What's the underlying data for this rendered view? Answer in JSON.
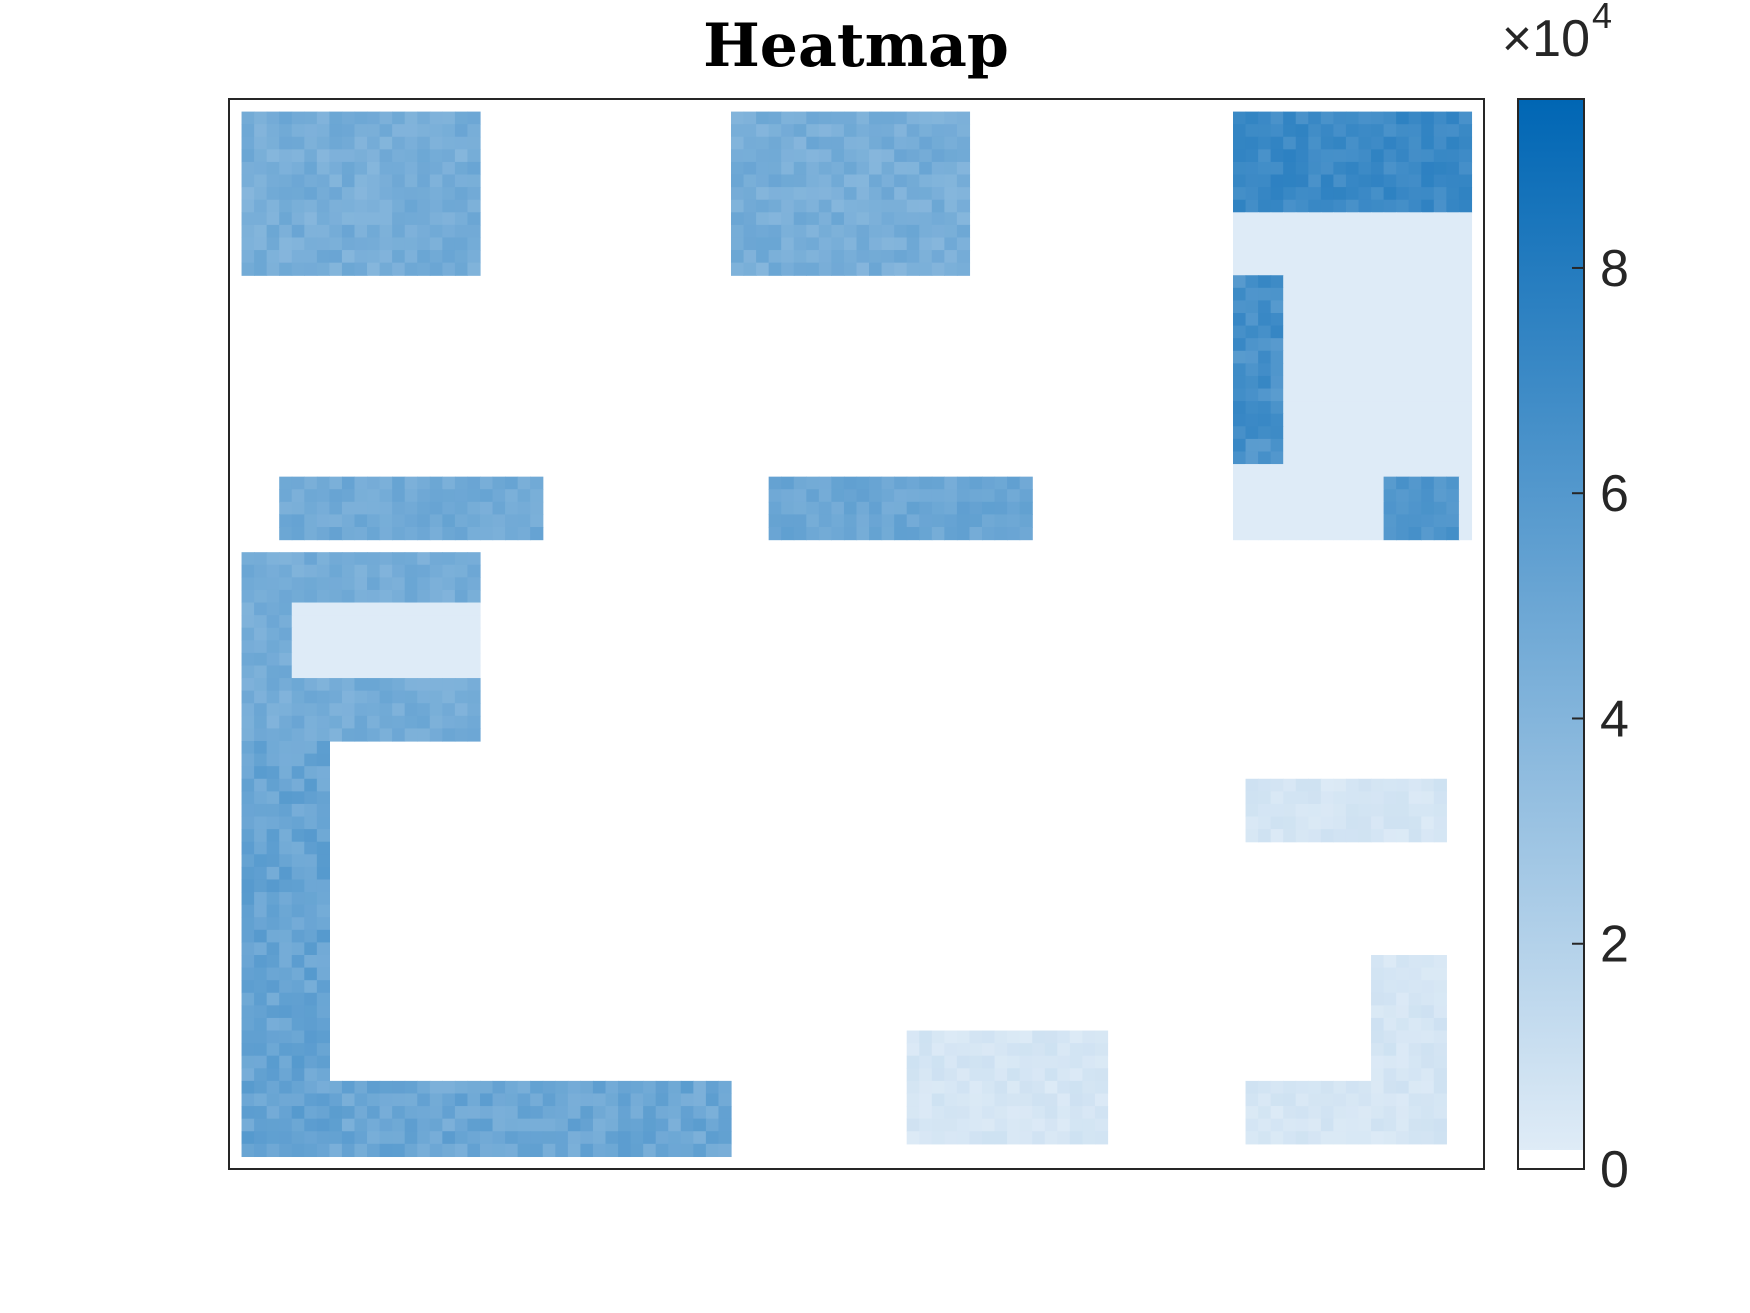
{
  "chart_data": {
    "type": "heatmap",
    "title": "Heatmap",
    "xlabel": "",
    "ylabel": "",
    "grid": false,
    "colorbar": {
      "min": 0,
      "max": 95000,
      "ticks": [
        0,
        20000,
        40000,
        60000,
        80000
      ],
      "tick_labels": [
        "0",
        "2",
        "4",
        "6",
        "8"
      ],
      "exponent_label": "×10",
      "exponent": "4",
      "color_low": "#e3eef8",
      "color_high": "#0066b4",
      "zero_color": "#ffffff"
    },
    "grid_size": {
      "cols": 100,
      "rows": 85
    },
    "regions": [
      {
        "c0": 1,
        "r0": 1,
        "c1": 20,
        "r1": 14,
        "value": 45000,
        "noise": 6000
      },
      {
        "c0": 40,
        "r0": 1,
        "c1": 59,
        "r1": 14,
        "value": 45000,
        "noise": 6000
      },
      {
        "c0": 80,
        "r0": 1,
        "c1": 99,
        "r1": 9,
        "value": 70000,
        "noise": 6000
      },
      {
        "c0": 80,
        "r0": 9,
        "c1": 99,
        "r1": 35,
        "value": 2000,
        "noise": 0
      },
      {
        "c0": 80,
        "r0": 14,
        "c1": 84,
        "r1": 29,
        "value": 65000,
        "noise": 8000
      },
      {
        "c0": 92,
        "r0": 30,
        "c1": 98,
        "r1": 35,
        "value": 62000,
        "noise": 5000
      },
      {
        "c0": 4,
        "r0": 30,
        "c1": 25,
        "r1": 35,
        "value": 48000,
        "noise": 5000
      },
      {
        "c0": 43,
        "r0": 30,
        "c1": 64,
        "r1": 35,
        "value": 50000,
        "noise": 5000
      },
      {
        "c0": 1,
        "r0": 36,
        "c1": 20,
        "r1": 51,
        "value": 46000,
        "noise": 5000
      },
      {
        "c0": 5,
        "r0": 40,
        "c1": 20,
        "r1": 46,
        "value": 2000,
        "noise": 0
      },
      {
        "c0": 1,
        "r0": 51,
        "c1": 8,
        "r1": 84,
        "value": 52000,
        "noise": 7000
      },
      {
        "c0": 8,
        "r0": 78,
        "c1": 40,
        "r1": 84,
        "value": 50000,
        "noise": 7000
      },
      {
        "c0": 54,
        "r0": 74,
        "c1": 70,
        "r1": 83,
        "value": 6000,
        "noise": 3000
      },
      {
        "c0": 81,
        "r0": 54,
        "c1": 97,
        "r1": 59,
        "value": 6000,
        "noise": 3000
      },
      {
        "c0": 91,
        "r0": 68,
        "c1": 97,
        "r1": 83,
        "value": 6000,
        "noise": 3000
      },
      {
        "c0": 81,
        "r0": 78,
        "c1": 91,
        "r1": 83,
        "value": 6000,
        "noise": 3000
      }
    ]
  }
}
